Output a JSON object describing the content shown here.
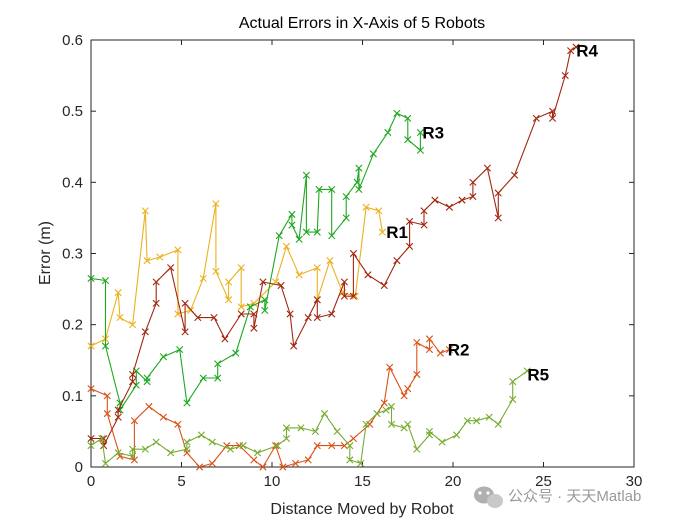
{
  "chart_data": {
    "type": "line",
    "title": "Actual Errors in X-Axis of 5 Robots",
    "xlabel": "Distance Moved by Robot",
    "ylabel": "Error (m)",
    "xlim": [
      0,
      30
    ],
    "ylim": [
      0,
      0.6
    ],
    "xticks": [
      "0",
      "5",
      "10",
      "15",
      "20",
      "25",
      "30"
    ],
    "yticks": [
      "0",
      "0.1",
      "0.2",
      "0.3",
      "0.4",
      "0.5",
      "0.6"
    ],
    "grid": false,
    "marker": "x",
    "series": [
      {
        "name": "R1",
        "color": "#EDB120",
        "points": [
          [
            0,
            0.17
          ],
          [
            0.8,
            0.18
          ],
          [
            1.5,
            0.245
          ],
          [
            1.6,
            0.21
          ],
          [
            2.3,
            0.2
          ],
          [
            3.0,
            0.36
          ],
          [
            3.1,
            0.29
          ],
          [
            3.8,
            0.295
          ],
          [
            4.8,
            0.305
          ],
          [
            4.8,
            0.215
          ],
          [
            5.5,
            0.22
          ],
          [
            6.2,
            0.265
          ],
          [
            6.9,
            0.37
          ],
          [
            6.9,
            0.275
          ],
          [
            7.6,
            0.235
          ],
          [
            7.6,
            0.26
          ],
          [
            8.3,
            0.28
          ],
          [
            8.3,
            0.225
          ],
          [
            9.0,
            0.23
          ],
          [
            10.2,
            0.26
          ],
          [
            10.8,
            0.31
          ],
          [
            11.5,
            0.27
          ],
          [
            12.5,
            0.28
          ],
          [
            12.5,
            0.235
          ],
          [
            13.2,
            0.29
          ],
          [
            13.9,
            0.245
          ],
          [
            14.6,
            0.24
          ],
          [
            15.2,
            0.365
          ],
          [
            15.9,
            0.36
          ],
          [
            16.1,
            0.33
          ]
        ]
      },
      {
        "name": "R2",
        "color": "#D95319",
        "points": [
          [
            0,
            0.11
          ],
          [
            0.9,
            0.1
          ],
          [
            0.9,
            0.075
          ],
          [
            1.6,
            0.015
          ],
          [
            2.4,
            0.01
          ],
          [
            2.4,
            0.065
          ],
          [
            3.2,
            0.085
          ],
          [
            4.0,
            0.07
          ],
          [
            4.8,
            0.06
          ],
          [
            5.3,
            0.02
          ],
          [
            6.0,
            0.0
          ],
          [
            6.7,
            0.005
          ],
          [
            7.5,
            0.03
          ],
          [
            8.2,
            0.03
          ],
          [
            9.0,
            0.01
          ],
          [
            9.5,
            0.0
          ],
          [
            10.2,
            0.03
          ],
          [
            10.6,
            0.0
          ],
          [
            11.3,
            0.005
          ],
          [
            12.0,
            0.01
          ],
          [
            12.5,
            0.03
          ],
          [
            13.3,
            0.03
          ],
          [
            14.0,
            0.03
          ],
          [
            14.5,
            0.04
          ],
          [
            15.4,
            0.06
          ],
          [
            16.2,
            0.09
          ],
          [
            16.5,
            0.14
          ],
          [
            17.3,
            0.1
          ],
          [
            17.5,
            0.11
          ],
          [
            18.0,
            0.13
          ],
          [
            18.0,
            0.175
          ],
          [
            18.7,
            0.165
          ],
          [
            18.7,
            0.18
          ],
          [
            19.3,
            0.16
          ],
          [
            19.8,
            0.165
          ]
        ]
      },
      {
        "name": "R3",
        "color": "#1EA820",
        "points": [
          [
            0,
            0.265
          ],
          [
            0.8,
            0.262
          ],
          [
            0.8,
            0.17
          ],
          [
            1.6,
            0.09
          ],
          [
            1.6,
            0.08
          ],
          [
            2.5,
            0.115
          ],
          [
            2.5,
            0.135
          ],
          [
            3.1,
            0.12
          ],
          [
            3.1,
            0.125
          ],
          [
            4.0,
            0.155
          ],
          [
            4.9,
            0.165
          ],
          [
            5.3,
            0.09
          ],
          [
            6.2,
            0.125
          ],
          [
            7.0,
            0.125
          ],
          [
            7.0,
            0.145
          ],
          [
            8.0,
            0.16
          ],
          [
            8.8,
            0.225
          ],
          [
            9.6,
            0.235
          ],
          [
            9.6,
            0.22
          ],
          [
            10.4,
            0.325
          ],
          [
            11.1,
            0.355
          ],
          [
            11.1,
            0.34
          ],
          [
            11.5,
            0.32
          ],
          [
            11.9,
            0.41
          ],
          [
            11.9,
            0.33
          ],
          [
            12.5,
            0.33
          ],
          [
            12.6,
            0.39
          ],
          [
            13.3,
            0.39
          ],
          [
            13.3,
            0.325
          ],
          [
            14.1,
            0.35
          ],
          [
            14.1,
            0.38
          ],
          [
            14.7,
            0.4
          ],
          [
            14.8,
            0.42
          ],
          [
            14.8,
            0.39
          ],
          [
            15.6,
            0.44
          ],
          [
            16.4,
            0.47
          ],
          [
            16.9,
            0.497
          ],
          [
            17.5,
            0.49
          ],
          [
            17.5,
            0.46
          ],
          [
            18.2,
            0.445
          ],
          [
            18.2,
            0.47
          ]
        ]
      },
      {
        "name": "R4",
        "color": "#A2270F",
        "points": [
          [
            0,
            0.04
          ],
          [
            0.7,
            0.04
          ],
          [
            0.7,
            0.03
          ],
          [
            1.5,
            0.07
          ],
          [
            1.5,
            0.08
          ],
          [
            2.3,
            0.12
          ],
          [
            2.3,
            0.13
          ],
          [
            3.0,
            0.19
          ],
          [
            3.6,
            0.23
          ],
          [
            3.6,
            0.26
          ],
          [
            4.4,
            0.28
          ],
          [
            5.2,
            0.19
          ],
          [
            5.2,
            0.23
          ],
          [
            5.9,
            0.21
          ],
          [
            6.8,
            0.21
          ],
          [
            7.4,
            0.18
          ],
          [
            8.3,
            0.215
          ],
          [
            9.0,
            0.215
          ],
          [
            9.0,
            0.195
          ],
          [
            9.5,
            0.26
          ],
          [
            10.5,
            0.255
          ],
          [
            11.0,
            0.215
          ],
          [
            11.2,
            0.17
          ],
          [
            12.0,
            0.21
          ],
          [
            12.5,
            0.235
          ],
          [
            12.5,
            0.21
          ],
          [
            13.3,
            0.215
          ],
          [
            14.0,
            0.26
          ],
          [
            14.0,
            0.24
          ],
          [
            14.5,
            0.24
          ],
          [
            14.5,
            0.3
          ],
          [
            15.3,
            0.27
          ],
          [
            16.2,
            0.255
          ],
          [
            16.9,
            0.29
          ],
          [
            17.6,
            0.31
          ],
          [
            17.6,
            0.345
          ],
          [
            18.4,
            0.34
          ],
          [
            18.4,
            0.36
          ],
          [
            19.0,
            0.375
          ],
          [
            19.8,
            0.365
          ],
          [
            20.5,
            0.375
          ],
          [
            21.1,
            0.38
          ],
          [
            21.1,
            0.4
          ],
          [
            21.9,
            0.42
          ],
          [
            22.5,
            0.35
          ],
          [
            22.5,
            0.385
          ],
          [
            23.4,
            0.41
          ],
          [
            24.6,
            0.49
          ],
          [
            25.5,
            0.5
          ],
          [
            25.5,
            0.49
          ],
          [
            26.2,
            0.55
          ],
          [
            26.5,
            0.585
          ],
          [
            26.8,
            0.59
          ]
        ]
      },
      {
        "name": "R5",
        "color": "#77AC30",
        "points": [
          [
            0,
            0.03
          ],
          [
            0.6,
            0.04
          ],
          [
            0.8,
            0.005
          ],
          [
            1.5,
            0.02
          ],
          [
            2.3,
            0.015
          ],
          [
            2.3,
            0.025
          ],
          [
            3.0,
            0.025
          ],
          [
            3.6,
            0.035
          ],
          [
            4.4,
            0.02
          ],
          [
            5.3,
            0.025
          ],
          [
            5.3,
            0.035
          ],
          [
            6.1,
            0.045
          ],
          [
            6.7,
            0.035
          ],
          [
            7.7,
            0.025
          ],
          [
            8.4,
            0.03
          ],
          [
            9.2,
            0.02
          ],
          [
            10.3,
            0.03
          ],
          [
            10.8,
            0.04
          ],
          [
            10.8,
            0.055
          ],
          [
            11.6,
            0.055
          ],
          [
            12.4,
            0.05
          ],
          [
            12.9,
            0.075
          ],
          [
            13.6,
            0.05
          ],
          [
            14.3,
            0.03
          ],
          [
            14.3,
            0.01
          ],
          [
            14.9,
            0.005
          ],
          [
            15.2,
            0.06
          ],
          [
            15.8,
            0.075
          ],
          [
            16.3,
            0.08
          ],
          [
            16.6,
            0.085
          ],
          [
            16.6,
            0.06
          ],
          [
            17.3,
            0.055
          ],
          [
            17.5,
            0.06
          ],
          [
            18.0,
            0.025
          ],
          [
            18.7,
            0.045
          ],
          [
            18.7,
            0.05
          ],
          [
            19.4,
            0.035
          ],
          [
            20.2,
            0.045
          ],
          [
            20.8,
            0.065
          ],
          [
            21.3,
            0.065
          ],
          [
            22.0,
            0.07
          ],
          [
            22.5,
            0.06
          ],
          [
            23.3,
            0.095
          ],
          [
            23.3,
            0.12
          ],
          [
            24.1,
            0.135
          ]
        ]
      }
    ],
    "annotations": [
      {
        "text": "R1",
        "x": 16.2,
        "y": 0.33
      },
      {
        "text": "R2",
        "x": 19.6,
        "y": 0.165
      },
      {
        "text": "R3",
        "x": 18.2,
        "y": 0.47
      },
      {
        "text": "R4",
        "x": 26.7,
        "y": 0.585
      },
      {
        "text": "R5",
        "x": 24.0,
        "y": 0.13
      }
    ]
  },
  "watermark": {
    "text": "公众号 · 天天Matlab",
    "icon": "wechat-icon"
  }
}
